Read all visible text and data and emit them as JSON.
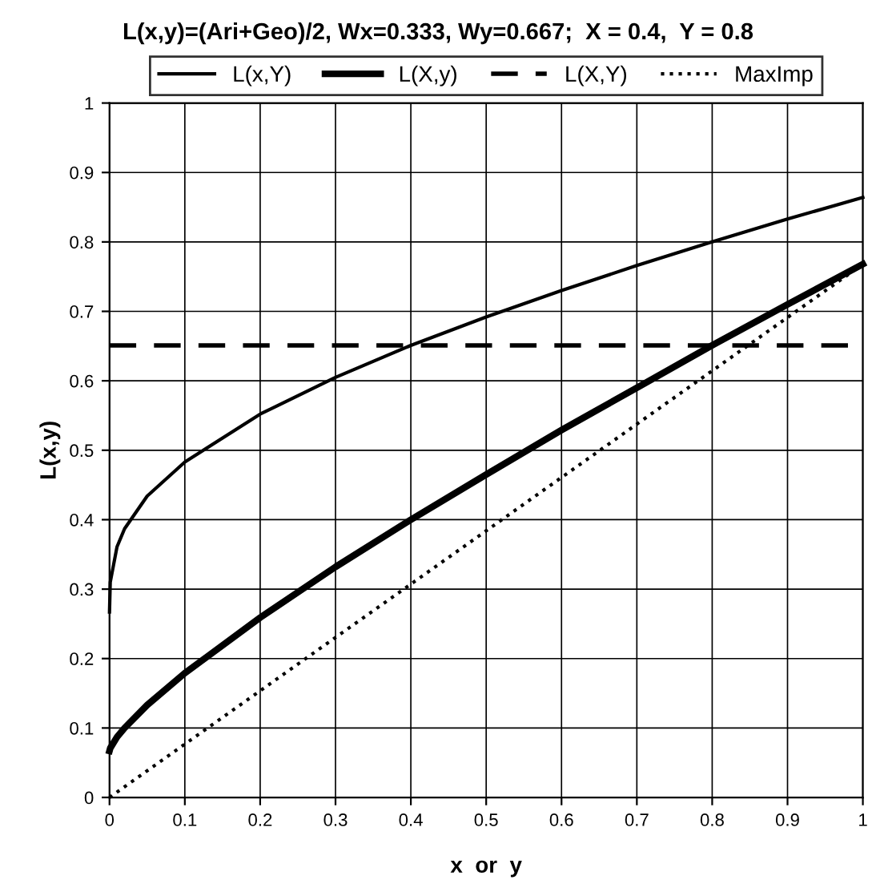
{
  "chart_data": {
    "type": "line",
    "title": "L(x,y)=(Ari+Geo)/2, Wx=0.333, Wy=0.667;  X = 0.4,  Y = 0.8",
    "xlabel": "x  or  y",
    "ylabel": "L(x,y)",
    "series": [
      {
        "name": "L(x,Y)",
        "color": "#000000",
        "line_style": "solid",
        "x": [
          0,
          0.001,
          0.01,
          0.02,
          0.05,
          0.1,
          0.2,
          0.3,
          0.4,
          0.5,
          0.6,
          0.7,
          0.8,
          0.9,
          1
        ],
        "values": [
          0.267,
          0.31,
          0.361,
          0.387,
          0.434,
          0.483,
          0.552,
          0.605,
          0.651,
          0.692,
          0.73,
          0.766,
          0.8,
          0.833,
          0.864
        ]
      },
      {
        "name": "L(X,y)",
        "color": "#000000",
        "line_style": "solid",
        "x": [
          0,
          0.001,
          0.01,
          0.02,
          0.05,
          0.1,
          0.2,
          0.3,
          0.4,
          0.5,
          0.6,
          0.7,
          0.8,
          0.9,
          1
        ],
        "values": [
          0.067,
          0.071,
          0.087,
          0.1,
          0.133,
          0.179,
          0.259,
          0.332,
          0.4,
          0.465,
          0.529,
          0.59,
          0.651,
          0.71,
          0.768
        ]
      },
      {
        "name": "L(X,Y)",
        "color": "#000000",
        "line_style": "dashed",
        "x": [
          0,
          1
        ],
        "values": [
          0.651,
          0.651
        ]
      },
      {
        "name": "MaxImp",
        "color": "#000000",
        "line_style": "dotted",
        "x": [
          0,
          1
        ],
        "values": [
          0,
          0.768
        ]
      }
    ],
    "xlim": [
      0,
      1
    ],
    "ylim": [
      0,
      1
    ],
    "xticks": [
      0,
      0.1,
      0.2,
      0.3,
      0.4,
      0.5,
      0.6,
      0.7,
      0.8,
      0.9,
      1
    ],
    "yticks": [
      0,
      0.1,
      0.2,
      0.3,
      0.4,
      0.5,
      0.6,
      0.7,
      0.8,
      0.9,
      1
    ],
    "grid": true,
    "legend": "top",
    "marker": "none"
  }
}
